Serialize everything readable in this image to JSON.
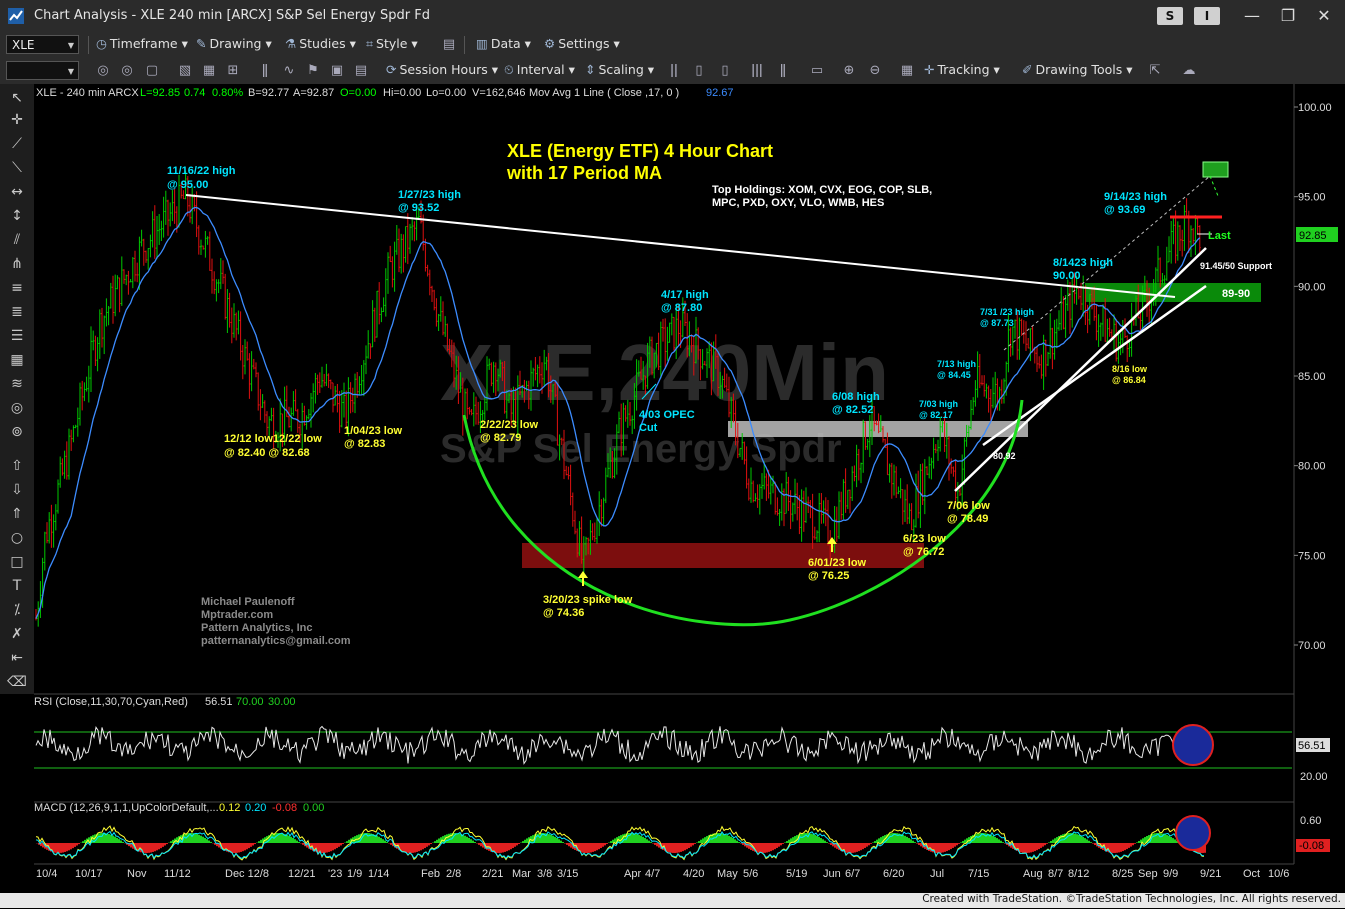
{
  "window": {
    "title": "Chart Analysis - XLE 240 min [ARCX] S&P Sel Energy Spdr Fd",
    "btn_s": "S",
    "btn_i": "I",
    "minimize": "—",
    "restore": "❐",
    "close": "✕"
  },
  "toolbar1": {
    "symbol": "XLE",
    "timeframe": "Timeframe",
    "drawing": "Drawing",
    "studies": "Studies",
    "style": "Style",
    "data": "Data",
    "settings": "Settings"
  },
  "toolbar2": {
    "session_hours": "Session Hours",
    "interval": "Interval",
    "scaling": "Scaling",
    "tracking": "Tracking",
    "drawing_tools": "Drawing Tools"
  },
  "header": {
    "symbol_info": "XLE - 240 min  ARCX",
    "last": "L=92.85",
    "change": "0.74",
    "pct": "0.80%",
    "bid": "B=92.77",
    "ask": "A=92.87",
    "open": "O=0.00",
    "hi": "Hi=0.00",
    "lo": "Lo=0.00",
    "vol": "V=162,646",
    "ma_label": "Mov Avg 1 Line  ( Close ,17,  0  )",
    "ma_value": "92.67"
  },
  "watermark": {
    "line1": "XLE,240Min",
    "line2": "S&P Sel Energy Spdr"
  },
  "chart_title": {
    "line1": "XLE (Energy ETF) 4 Hour Chart",
    "line2": "with 17 Period MA"
  },
  "holdings": {
    "line1": "Top Holdings: XOM, CVX, EOG, COP, SLB,",
    "line2": "MPC, PXD, OXY, VLO, WMB, HES"
  },
  "credits": [
    "Michael Paulenoff",
    "Mptrader.com",
    "Pattern Analytics, Inc",
    "patternanalytics@gmail.com"
  ],
  "annotations": {
    "h1116": [
      "11/16/22 high",
      "@ 95.00"
    ],
    "h0127": [
      "1/27/23 high",
      "@ 93.52"
    ],
    "h0417": [
      "4/17 high",
      "@ 87.80"
    ],
    "h0608": [
      "6/08 high",
      "@ 82.52"
    ],
    "h0703": [
      "7/03 high",
      "@ 82.17"
    ],
    "h0713": [
      "7/13 high",
      "@ 84.45"
    ],
    "h0731": [
      "7/31 /23 high",
      "@ 87.73"
    ],
    "h0814": [
      "8/1423 high",
      "90.00"
    ],
    "h0914": [
      "9/14/23 high",
      "@ 93.69"
    ],
    "l1212": [
      "12/12 low12/22 low",
      "@ 82.40   @ 82.68"
    ],
    "l0104": [
      "1/04/23 low",
      "@ 82.83"
    ],
    "l0222": [
      "2/22/23 low",
      "@ 82.79"
    ],
    "opec": [
      "4/03 OPEC",
      "Cut"
    ],
    "l0320": [
      "3/20/23 spike low",
      "@ 74.36"
    ],
    "l0601": [
      "6/01/23 low",
      "@ 76.25"
    ],
    "l0623": [
      "6/23 low",
      "@ 76.72"
    ],
    "l0706": [
      "7/06 low",
      "@ 78.49"
    ],
    "l0816": [
      "8/16 low",
      "@ 86.84"
    ],
    "val8092": "80.92",
    "last_label": "Last",
    "support": "91.45/50 Support",
    "zone": "89-90"
  },
  "price_axis": {
    "ticks": [
      "100.00",
      "95.00",
      "90.00",
      "85.00",
      "80.00",
      "75.00",
      "70.00"
    ],
    "last_badge": "92.85"
  },
  "rsi": {
    "label": "RSI (Close,11,30,70,Cyan,Red)",
    "value": "56.51",
    "ob": "70.00",
    "os": "30.00",
    "axis": [
      "56.51",
      "20.00"
    ]
  },
  "macd": {
    "label": "MACD (12,26,9,1,1,UpColorDefault,...",
    "v1": "0.12",
    "v2": "0.20",
    "v3": "-0.08",
    "v4": "0.00",
    "axis": [
      "0.60",
      "-0.08"
    ]
  },
  "date_axis": [
    "10/4",
    "10/17",
    "Nov",
    "11/12",
    "Dec 12/8",
    "12/21",
    "'23",
    "1/9",
    "1/14",
    "Feb",
    "2/8",
    "2/21",
    "Mar",
    "3/8",
    "3/15",
    "Apr",
    "4/7",
    "4/20",
    "May",
    "5/6",
    "5/19",
    "Jun",
    "6/7",
    "6/20",
    "Jul",
    "7/15",
    "Aug",
    "8/7",
    "8/12",
    "8/25",
    "Sep",
    "9/9",
    "9/21",
    "Oct",
    "10/6"
  ],
  "footer": "Created with TradeStation. ©TradeStation Technologies, Inc. All rights reserved.",
  "colors": {
    "up": "#00c800",
    "down": "#e01010",
    "ma": "#3c8cff",
    "annotation_cyan": "#00e5ff",
    "annotation_yellow": "#ffff33",
    "title_yellow": "#ffff00"
  },
  "chart_data": {
    "type": "line",
    "title": "XLE (Energy ETF) 4 Hour Chart",
    "xlabel": "",
    "ylabel": "",
    "ylim": [
      68,
      101
    ],
    "categories": [
      "10/4",
      "11/16",
      "12/12",
      "12/22",
      "1/04",
      "1/27",
      "2/22",
      "3/20",
      "4/17",
      "6/01",
      "6/08",
      "6/23",
      "7/03",
      "7/06",
      "7/13",
      "7/31",
      "8/14",
      "8/16",
      "9/14",
      "9/21"
    ],
    "series": [
      {
        "values": [
          70.5,
          95.0,
          82.4,
          82.68,
          82.83,
          93.52,
          82.79,
          74.36,
          87.8,
          76.25,
          82.52,
          76.72,
          82.17,
          78.49,
          84.45,
          87.73,
          90.0,
          86.84,
          93.69,
          92.85
        ]
      }
    ]
  }
}
